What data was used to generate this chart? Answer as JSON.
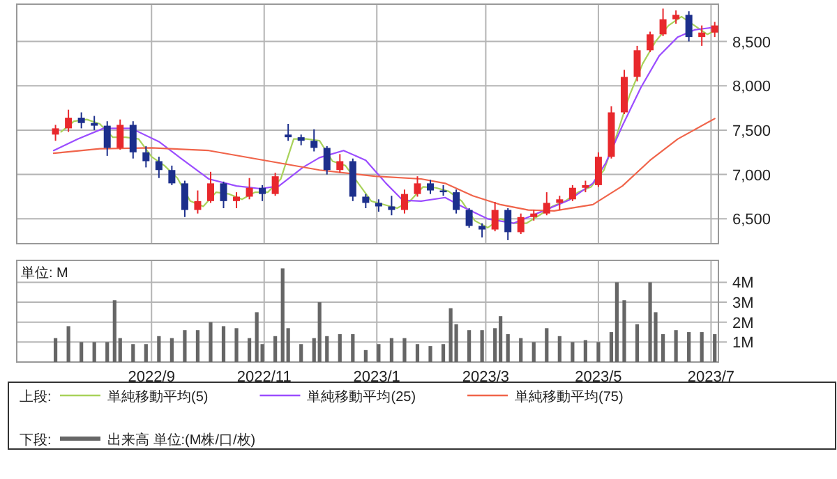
{
  "chart_data": [
    {
      "type": "candlestick",
      "x": [
        "2022-07-11",
        "2022-07-18",
        "2022-07-25",
        "2022-08-01",
        "2022-08-08",
        "2022-08-15",
        "2022-08-22",
        "2022-08-29",
        "2022-09-05",
        "2022-09-12",
        "2022-09-19",
        "2022-09-26",
        "2022-10-03",
        "2022-10-10",
        "2022-10-17",
        "2022-10-24",
        "2022-10-31",
        "2022-11-07",
        "2022-11-14",
        "2022-11-21",
        "2022-11-28",
        "2022-12-05",
        "2022-12-12",
        "2022-12-19",
        "2022-12-26",
        "2023-01-02",
        "2023-01-09",
        "2023-01-16",
        "2023-01-23",
        "2023-01-30",
        "2023-02-06",
        "2023-02-13",
        "2023-02-20",
        "2023-02-27",
        "2023-03-06",
        "2023-03-13",
        "2023-03-20",
        "2023-03-27",
        "2023-04-03",
        "2023-04-10",
        "2023-04-17",
        "2023-04-24",
        "2023-05-01",
        "2023-05-08",
        "2023-05-15",
        "2023-05-22",
        "2023-05-29",
        "2023-06-05",
        "2023-06-12",
        "2023-06-19",
        "2023-06-26",
        "2023-07-03"
      ],
      "ohlc": [
        [
          7450,
          7560,
          7380,
          7520
        ],
        [
          7520,
          7730,
          7480,
          7640
        ],
        [
          7640,
          7700,
          7520,
          7580
        ],
        [
          7580,
          7660,
          7500,
          7550
        ],
        [
          7550,
          7600,
          7210,
          7300
        ],
        [
          7300,
          7620,
          7280,
          7560
        ],
        [
          7560,
          7600,
          7180,
          7250
        ],
        [
          7250,
          7320,
          7080,
          7150
        ],
        [
          7150,
          7200,
          6960,
          7050
        ],
        [
          7050,
          7100,
          6880,
          6900
        ],
        [
          6900,
          6930,
          6520,
          6600
        ],
        [
          6600,
          6820,
          6560,
          6700
        ],
        [
          6700,
          7030,
          6680,
          6900
        ],
        [
          6900,
          6920,
          6620,
          6700
        ],
        [
          6700,
          6800,
          6620,
          6750
        ],
        [
          6750,
          6960,
          6720,
          6850
        ],
        [
          6850,
          6880,
          6700,
          6780
        ],
        [
          6780,
          7020,
          6760,
          6980
        ],
        [
          7450,
          7570,
          7380,
          7420
        ],
        [
          7420,
          7450,
          7330,
          7380
        ],
        [
          7380,
          7510,
          7260,
          7300
        ],
        [
          7300,
          7320,
          7000,
          7050
        ],
        [
          7050,
          7230,
          7020,
          7150
        ],
        [
          7150,
          7180,
          6700,
          6750
        ],
        [
          6750,
          6780,
          6620,
          6680
        ],
        [
          6680,
          6720,
          6580,
          6640
        ],
        [
          6640,
          6760,
          6540,
          6600
        ],
        [
          6600,
          6830,
          6560,
          6780
        ],
        [
          6780,
          6980,
          6750,
          6900
        ],
        [
          6900,
          6940,
          6780,
          6820
        ],
        [
          6820,
          6880,
          6760,
          6800
        ],
        [
          6800,
          6830,
          6560,
          6600
        ],
        [
          6600,
          6620,
          6400,
          6420
        ],
        [
          6420,
          6450,
          6290,
          6380
        ],
        [
          6380,
          6690,
          6360,
          6600
        ],
        [
          6600,
          6620,
          6260,
          6350
        ],
        [
          6350,
          6560,
          6330,
          6520
        ],
        [
          6520,
          6600,
          6480,
          6560
        ],
        [
          6560,
          6800,
          6540,
          6680
        ],
        [
          6680,
          6760,
          6600,
          6720
        ],
        [
          6720,
          6880,
          6700,
          6850
        ],
        [
          6850,
          6930,
          6800,
          6880
        ],
        [
          6880,
          7250,
          6860,
          7200
        ],
        [
          7200,
          7770,
          7180,
          7700
        ],
        [
          7700,
          8180,
          7680,
          8100
        ],
        [
          8100,
          8450,
          8050,
          8400
        ],
        [
          8400,
          8610,
          8380,
          8580
        ],
        [
          8580,
          8870,
          8560,
          8750
        ],
        [
          8750,
          8850,
          8700,
          8800
        ],
        [
          8800,
          8840,
          8500,
          8550
        ],
        [
          8550,
          8680,
          8450,
          8600
        ],
        [
          8600,
          8720,
          8550,
          8680
        ]
      ],
      "colors": [
        "#e8282c",
        "#e8282c",
        "#1c2f8c",
        "#1c2f8c",
        "#1c2f8c",
        "#e8282c",
        "#1c2f8c",
        "#1c2f8c",
        "#1c2f8c",
        "#1c2f8c",
        "#1c2f8c",
        "#e8282c",
        "#e8282c",
        "#1c2f8c",
        "#e8282c",
        "#e8282c",
        "#1c2f8c",
        "#e8282c",
        "#1c2f8c",
        "#1c2f8c",
        "#1c2f8c",
        "#1c2f8c",
        "#e8282c",
        "#1c2f8c",
        "#1c2f8c",
        "#1c2f8c",
        "#1c2f8c",
        "#e8282c",
        "#e8282c",
        "#1c2f8c",
        "#1c2f8c",
        "#1c2f8c",
        "#1c2f8c",
        "#1c2f8c",
        "#e8282c",
        "#1c2f8c",
        "#e8282c",
        "#e8282c",
        "#e8282c",
        "#e8282c",
        "#e8282c",
        "#e8282c",
        "#e8282c",
        "#e8282c",
        "#e8282c",
        "#e8282c",
        "#e8282c",
        "#e8282c",
        "#e8282c",
        "#1c2f8c",
        "#e8282c",
        "#e8282c"
      ],
      "series": [
        {
          "name": "単純移動平均(5)",
          "type": "line",
          "color": "#a8d25a",
          "x": [
            "2022-07-14",
            "2022-07-21",
            "2022-07-28",
            "2022-08-04",
            "2022-08-11",
            "2022-08-18",
            "2022-08-25",
            "2022-09-01",
            "2022-09-08",
            "2022-09-15",
            "2022-09-22",
            "2022-09-29",
            "2022-10-06",
            "2022-10-13",
            "2022-10-20",
            "2022-10-27",
            "2022-11-03",
            "2022-11-10",
            "2022-11-17",
            "2022-11-24",
            "2022-12-01",
            "2022-12-08",
            "2022-12-15",
            "2022-12-22",
            "2022-12-29",
            "2023-01-05",
            "2023-01-12",
            "2023-01-19",
            "2023-01-26",
            "2023-02-02",
            "2023-02-09",
            "2023-02-16",
            "2023-02-23",
            "2023-03-02",
            "2023-03-09",
            "2023-03-16",
            "2023-03-23",
            "2023-03-30",
            "2023-04-06",
            "2023-04-13",
            "2023-04-20",
            "2023-04-27",
            "2023-05-04",
            "2023-05-11",
            "2023-05-18",
            "2023-05-25",
            "2023-06-01",
            "2023-06-08",
            "2023-06-15",
            "2023-06-22",
            "2023-06-29",
            "2023-07-03"
          ],
          "values": [
            7480,
            7600,
            7620,
            7570,
            7420,
            7420,
            7400,
            7200,
            7100,
            6960,
            6700,
            6640,
            6800,
            6780,
            6720,
            6800,
            6800,
            6950,
            7400,
            7400,
            7380,
            7150,
            7100,
            6900,
            6700,
            6660,
            6620,
            6700,
            6860,
            6850,
            6810,
            6700,
            6480,
            6400,
            6500,
            6450,
            6450,
            6540,
            6640,
            6700,
            6800,
            6860,
            7050,
            7450,
            7900,
            8250,
            8500,
            8680,
            8780,
            8680,
            8580,
            8620
          ]
        },
        {
          "name": "単純移動平均(25)",
          "type": "line",
          "color": "#9b4dff",
          "x": [
            "2022-07-10",
            "2022-07-23",
            "2022-08-06",
            "2022-08-21",
            "2022-09-05",
            "2022-09-17",
            "2022-10-02",
            "2022-10-17",
            "2022-10-30",
            "2022-11-09",
            "2022-11-22",
            "2022-12-01",
            "2022-12-14",
            "2022-12-26",
            "2023-01-06",
            "2023-01-15",
            "2023-01-25",
            "2023-02-07",
            "2023-02-17",
            "2023-03-02",
            "2023-03-16",
            "2023-03-31",
            "2023-04-15",
            "2023-04-28",
            "2023-05-05",
            "2023-05-14",
            "2023-05-24",
            "2023-06-03",
            "2023-06-13",
            "2023-06-22",
            "2023-07-03"
          ],
          "values": [
            7270,
            7400,
            7520,
            7520,
            7370,
            7180,
            6950,
            6870,
            6840,
            6870,
            7080,
            7190,
            7270,
            7160,
            6900,
            6710,
            6700,
            6740,
            6630,
            6500,
            6450,
            6580,
            6710,
            6900,
            7130,
            7550,
            7980,
            8340,
            8550,
            8630,
            8660
          ]
        },
        {
          "name": "単純移動平均(75)",
          "type": "line",
          "color": "#f0644a",
          "x": [
            "2022-07-10",
            "2022-08-04",
            "2022-09-01",
            "2022-10-02",
            "2022-11-01",
            "2022-12-01",
            "2022-12-31",
            "2023-01-25",
            "2023-02-07",
            "2023-02-22",
            "2023-03-09",
            "2023-03-24",
            "2023-04-07",
            "2023-04-28",
            "2023-05-14",
            "2023-05-29",
            "2023-06-13",
            "2023-07-03"
          ],
          "values": [
            7240,
            7290,
            7300,
            7270,
            7160,
            7050,
            6980,
            6950,
            6900,
            6760,
            6660,
            6600,
            6590,
            6660,
            6870,
            7160,
            7400,
            7630
          ]
        }
      ],
      "xlim": [
        "2022-06-20",
        "2023-07-05"
      ],
      "xticks": [
        {
          "value": "2022-09-01",
          "label": null
        },
        {
          "value": "2022-11-01",
          "label": null
        },
        {
          "value": "2023-01-01",
          "label": null
        },
        {
          "value": "2023-03-01",
          "label": null
        },
        {
          "value": "2023-05-01",
          "label": null
        },
        {
          "value": "2023-07-01",
          "label": null
        }
      ],
      "ylim": [
        6220,
        8920
      ],
      "yticks": [
        {
          "value": 6500,
          "label": "6,500"
        },
        {
          "value": 7000,
          "label": "7,000"
        },
        {
          "value": 7500,
          "label": "7,500"
        },
        {
          "value": 8000,
          "label": "8,000"
        },
        {
          "value": 8500,
          "label": "8,500"
        }
      ],
      "grid": true,
      "legend": "bottom",
      "legend_title": "上段:",
      "tick_labels": "y"
    },
    {
      "type": "bar",
      "series": [
        {
          "name": "出来高 単位:(M株/口/枚)",
          "color": "#666666",
          "x": [
            "2022-07-11",
            "2022-07-18",
            "2022-07-25",
            "2022-08-01",
            "2022-08-08",
            "2022-08-12",
            "2022-08-15",
            "2022-08-22",
            "2022-08-29",
            "2022-09-05",
            "2022-09-12",
            "2022-09-19",
            "2022-09-26",
            "2022-10-03",
            "2022-10-10",
            "2022-10-17",
            "2022-10-24",
            "2022-10-28",
            "2022-10-31",
            "2022-11-07",
            "2022-11-11",
            "2022-11-14",
            "2022-11-21",
            "2022-11-28",
            "2022-12-01",
            "2022-12-05",
            "2022-12-12",
            "2022-12-19",
            "2022-12-26",
            "2023-01-02",
            "2023-01-09",
            "2023-01-16",
            "2023-01-23",
            "2023-01-30",
            "2023-02-06",
            "2023-02-10",
            "2023-02-13",
            "2023-02-20",
            "2023-02-27",
            "2023-03-06",
            "2023-03-09",
            "2023-03-13",
            "2023-03-20",
            "2023-03-27",
            "2023-04-03",
            "2023-04-10",
            "2023-04-17",
            "2023-04-24",
            "2023-05-01",
            "2023-05-08",
            "2023-05-11",
            "2023-05-15",
            "2023-05-22",
            "2023-05-29",
            "2023-06-01",
            "2023-06-05",
            "2023-06-12",
            "2023-06-19",
            "2023-06-26",
            "2023-07-03"
          ],
          "values": [
            1.2,
            1.8,
            1.0,
            1.0,
            1.0,
            3.1,
            1.2,
            0.9,
            0.9,
            1.3,
            1.2,
            1.6,
            1.6,
            2.0,
            1.8,
            1.7,
            1.2,
            2.5,
            0.9,
            1.3,
            4.7,
            1.7,
            0.9,
            1.2,
            3.0,
            1.3,
            1.4,
            1.4,
            0.6,
            0.9,
            1.2,
            1.2,
            0.9,
            0.8,
            0.9,
            2.7,
            1.9,
            1.6,
            1.6,
            1.7,
            2.3,
            1.4,
            1.2,
            1.0,
            1.7,
            1.3,
            1.0,
            1.1,
            1.0,
            1.5,
            4.0,
            3.1,
            1.9,
            4.0,
            2.5,
            1.4,
            1.6,
            1.5,
            1.5,
            1.4
          ]
        }
      ],
      "xlim": [
        "2022-06-20",
        "2023-07-05"
      ],
      "xticks": [
        {
          "value": "2022-09-01",
          "label": "2022/9"
        },
        {
          "value": "2022-11-01",
          "label": "2022/11"
        },
        {
          "value": "2023-01-01",
          "label": "2023/1"
        },
        {
          "value": "2023-03-01",
          "label": "2023/3"
        },
        {
          "value": "2023-05-01",
          "label": "2023/5"
        },
        {
          "value": "2023-07-01",
          "label": "2023/7"
        }
      ],
      "ylim": [
        0,
        5.1
      ],
      "yticks": [
        {
          "value": 1,
          "label": "1M"
        },
        {
          "value": 2,
          "label": "2M"
        },
        {
          "value": 3,
          "label": "3M"
        },
        {
          "value": 4,
          "label": "4M"
        }
      ],
      "grid": true,
      "legend": "bottom",
      "legend_title": "下段:",
      "annotations": [
        "単位: M"
      ]
    }
  ]
}
